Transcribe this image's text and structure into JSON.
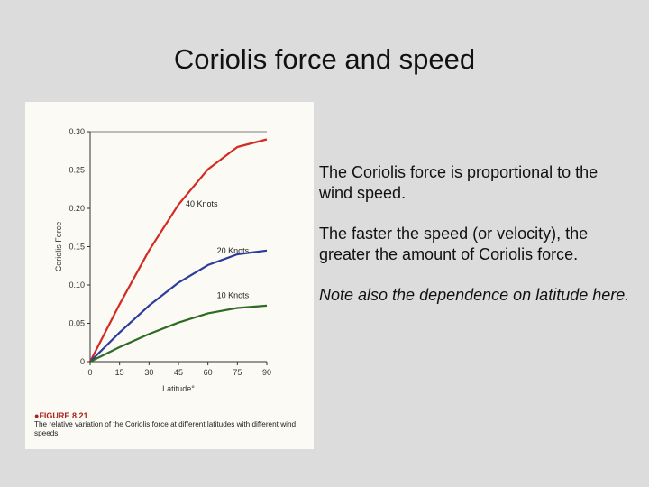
{
  "slide": {
    "title": "Coriolis force and speed",
    "paragraphs": [
      "The Coriolis force is proportional to the wind speed.",
      "The faster the speed (or velocity), the greater the amount of Coriolis force.",
      "Note also the dependence on latitude here."
    ]
  },
  "figure": {
    "label": "FIGURE 8.21",
    "caption": "The relative variation of the Coriolis force at different latitudes with different wind speeds."
  },
  "chart_data": {
    "type": "line",
    "xlabel": "Latitude°",
    "ylabel": "Coriolis Force",
    "xlim": [
      0,
      90
    ],
    "ylim": [
      0,
      0.3
    ],
    "xticks": [
      "0",
      "15",
      "30",
      "45",
      "60",
      "75",
      "90"
    ],
    "yticks": [
      "0",
      "0.05",
      "0.10",
      "0.15",
      "0.20",
      "0.25",
      "0.30"
    ],
    "x": [
      0,
      15,
      30,
      45,
      60,
      75,
      90
    ],
    "series": [
      {
        "name": "40 Knots",
        "color": "#d42a22",
        "values": [
          0,
          0.075,
          0.145,
          0.205,
          0.251,
          0.28,
          0.29
        ]
      },
      {
        "name": "20 Knots",
        "color": "#2a3c9c",
        "values": [
          0,
          0.038,
          0.073,
          0.103,
          0.126,
          0.14,
          0.145
        ]
      },
      {
        "name": "10 Knots",
        "color": "#2f6a22",
        "values": [
          0,
          0.019,
          0.036,
          0.051,
          0.063,
          0.07,
          0.073
        ]
      }
    ]
  }
}
